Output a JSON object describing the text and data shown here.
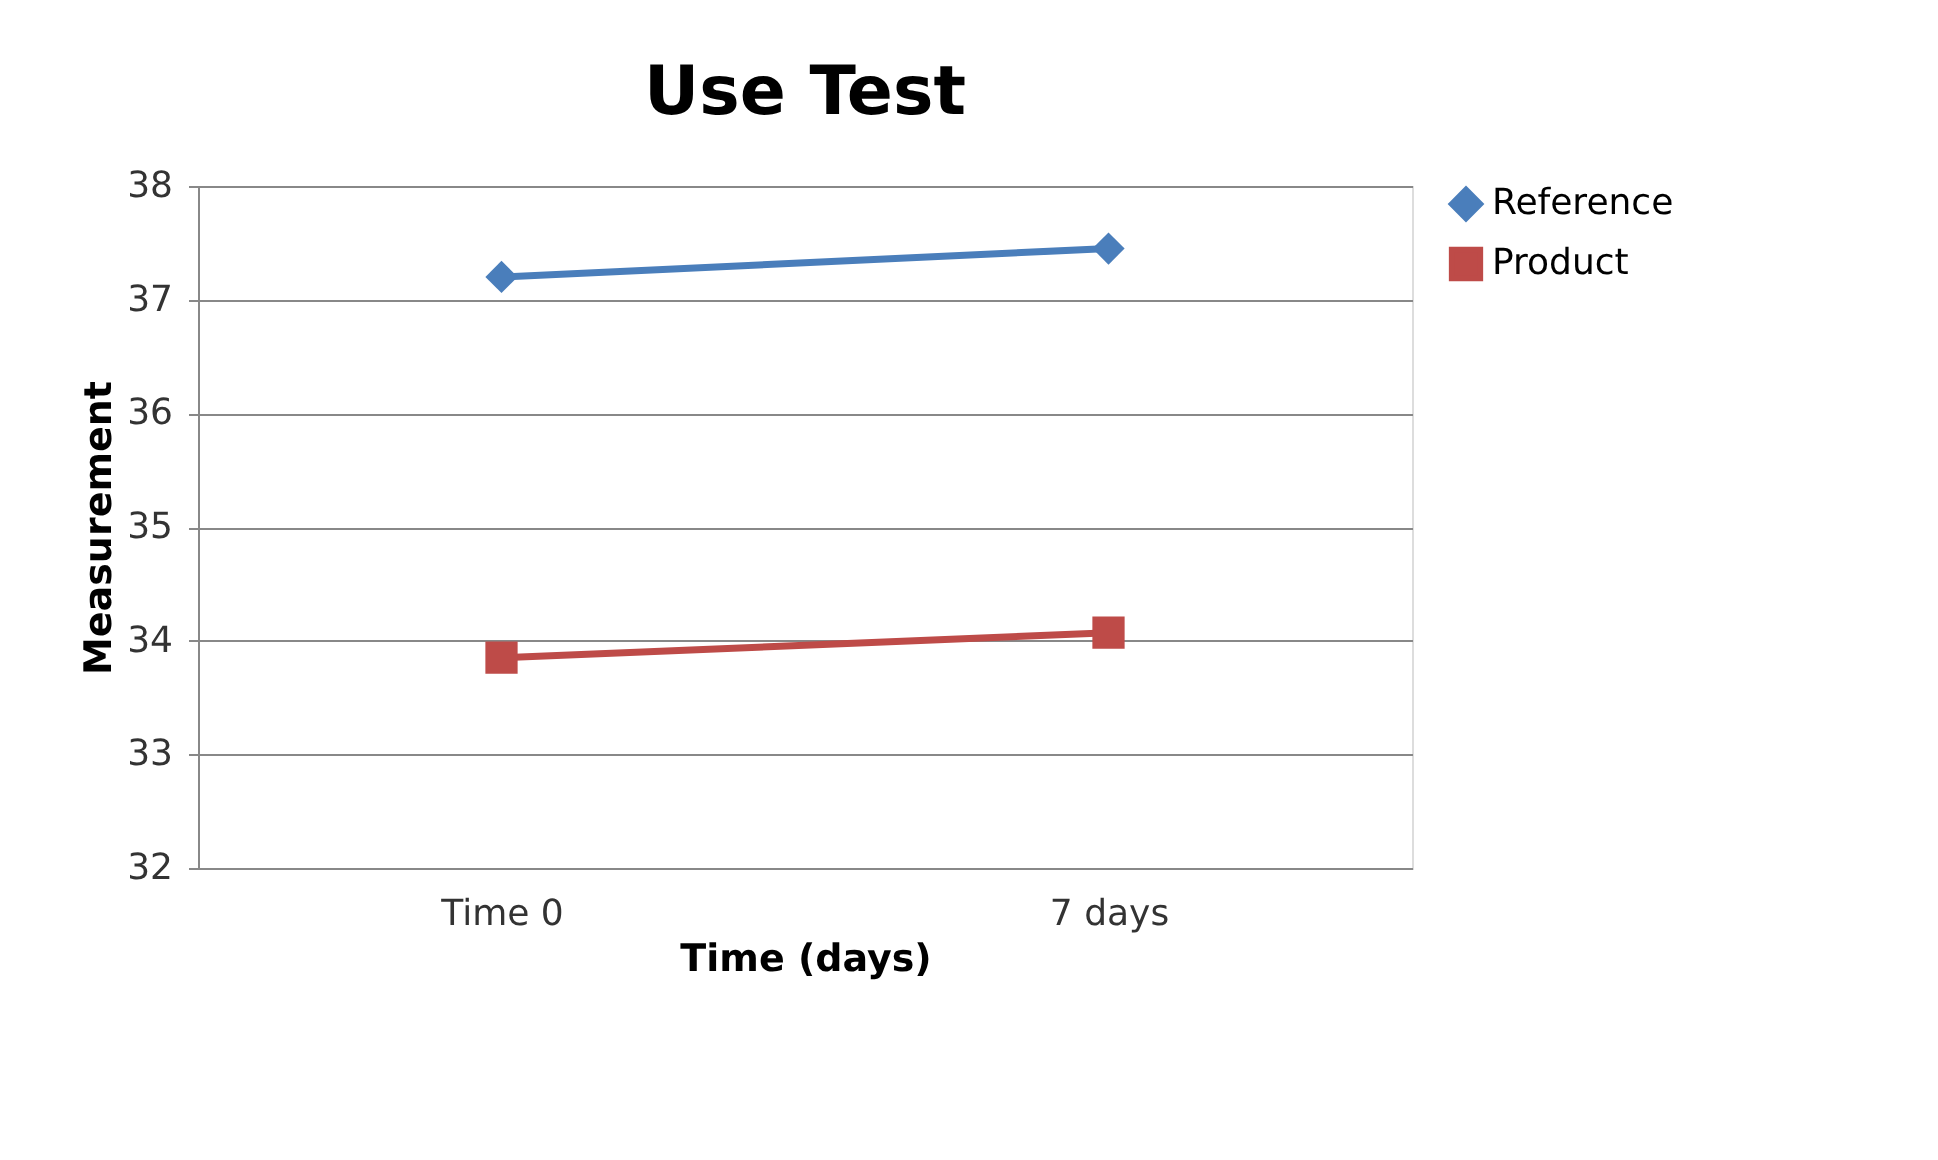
{
  "chart_data": {
    "type": "line",
    "title": "Use Test",
    "xlabel": "Time (days)",
    "ylabel": "Measurement",
    "categories": [
      "Time 0",
      "7 days"
    ],
    "series": [
      {
        "name": "Reference",
        "color": "#4a7ebb",
        "marker": "diamond",
        "values": [
          37.2,
          37.45
        ]
      },
      {
        "name": "Product",
        "color": "#be4b48",
        "marker": "square",
        "values": [
          33.85,
          34.07
        ]
      }
    ],
    "ylim": [
      32,
      38
    ],
    "yticks": [
      32,
      33,
      34,
      35,
      36,
      37,
      38
    ],
    "grid": "y",
    "legend": "right"
  }
}
